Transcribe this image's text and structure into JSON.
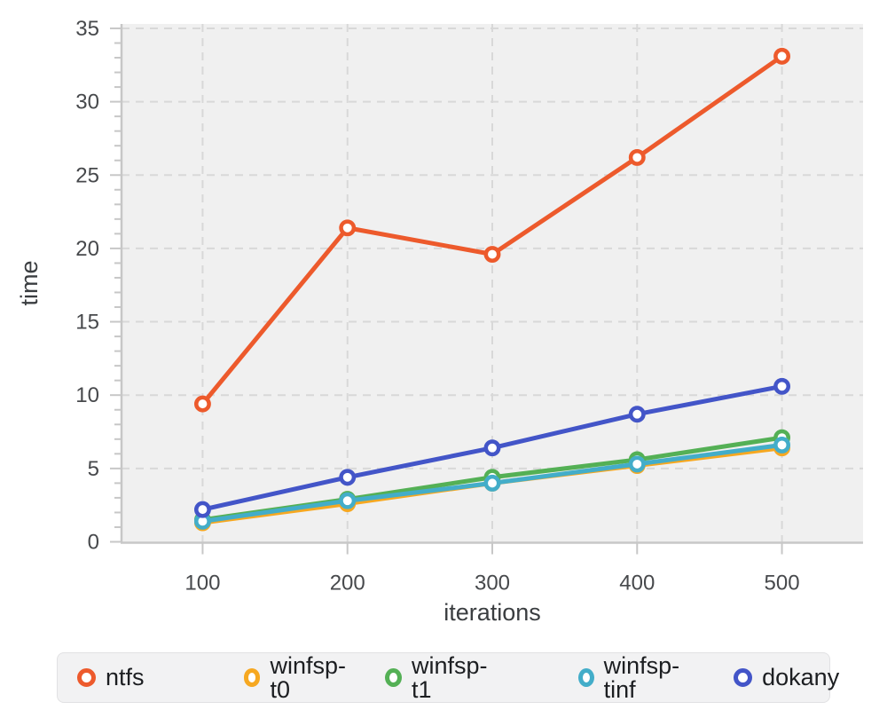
{
  "chart_data": {
    "type": "line",
    "x": [
      100,
      200,
      300,
      400,
      500
    ],
    "series": [
      {
        "name": "ntfs",
        "color": "#ed5a2c",
        "values": [
          9.4,
          21.4,
          19.6,
          26.2,
          33.1
        ]
      },
      {
        "name": "winfsp-t0",
        "color": "#f6a821",
        "values": [
          1.3,
          2.6,
          4.0,
          5.2,
          6.4
        ]
      },
      {
        "name": "winfsp-t1",
        "color": "#54b055",
        "values": [
          1.5,
          2.9,
          4.4,
          5.6,
          7.1
        ]
      },
      {
        "name": "winfsp-tinf",
        "color": "#43adc9",
        "values": [
          1.4,
          2.8,
          4.0,
          5.3,
          6.6
        ]
      },
      {
        "name": "dokany",
        "color": "#4355c8",
        "values": [
          2.2,
          4.4,
          6.4,
          8.7,
          10.6
        ]
      }
    ],
    "title": "",
    "xlabel": "iterations",
    "ylabel": "time",
    "xticks": [
      100,
      200,
      300,
      400,
      500
    ],
    "yticks": [
      0,
      5,
      10,
      15,
      20,
      25,
      30,
      35
    ],
    "y_minor_tick_step": 1,
    "xlim": [
      44,
      556
    ],
    "ylim": [
      0,
      35.3
    ],
    "grid": "dashed-major",
    "legend_position": "bottom",
    "marker": "open-circle",
    "style": {
      "plot_background": "#f0f0f0",
      "grid_color": "#d8d8d8",
      "axis_color": "#c7c7c7"
    }
  }
}
